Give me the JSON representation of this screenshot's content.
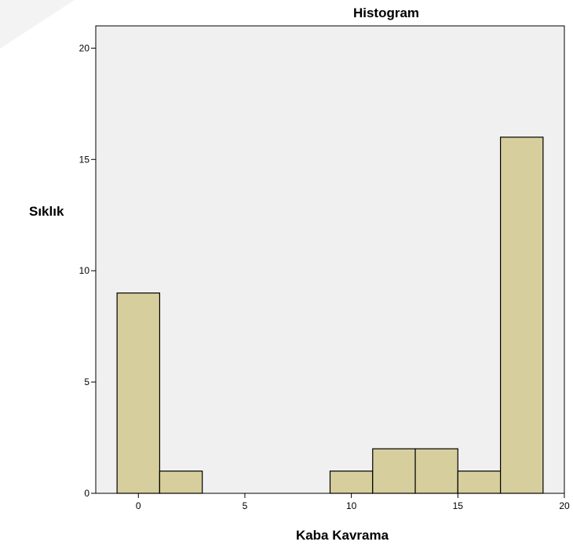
{
  "chart_data": {
    "type": "bar",
    "title": "Histogram",
    "xlabel": "Kaba Kavrama",
    "ylabel": "Sıklık",
    "xlim": [
      -2,
      20
    ],
    "ylim": [
      0,
      21
    ],
    "xticks": [
      0,
      5,
      10,
      15,
      20
    ],
    "yticks": [
      0,
      5,
      10,
      15,
      20
    ],
    "bin_width": 2,
    "bins": [
      {
        "start": -1,
        "end": 1,
        "count": 9
      },
      {
        "start": 1,
        "end": 3,
        "count": 1
      },
      {
        "start": 3,
        "end": 5,
        "count": 0
      },
      {
        "start": 5,
        "end": 7,
        "count": 0
      },
      {
        "start": 7,
        "end": 9,
        "count": 0
      },
      {
        "start": 9,
        "end": 11,
        "count": 1
      },
      {
        "start": 11,
        "end": 13,
        "count": 2
      },
      {
        "start": 13,
        "end": 15,
        "count": 2
      },
      {
        "start": 15,
        "end": 17,
        "count": 1
      },
      {
        "start": 17,
        "end": 19,
        "count": 16
      }
    ],
    "grid": false,
    "legend": "none",
    "colors": {
      "bar_fill": "#d6ce9c",
      "bar_stroke": "#000000",
      "plot_bg": "#f0f0f0",
      "frame": "#000000"
    }
  }
}
